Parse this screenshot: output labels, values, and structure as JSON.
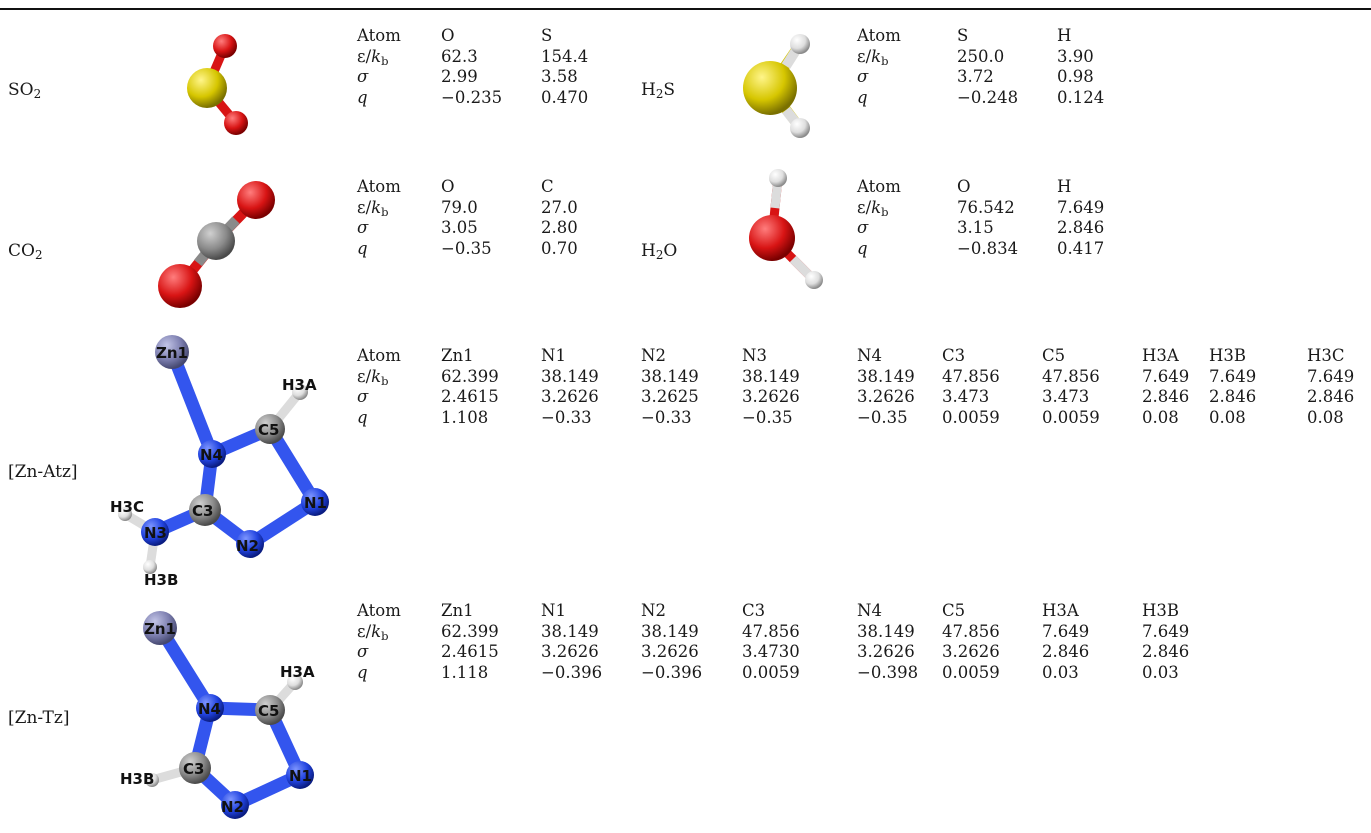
{
  "molecules": [
    {
      "id": "so2",
      "label_main": "SO",
      "label_sub": "2",
      "label_after": "",
      "header": [
        "Atom",
        "O",
        "S"
      ],
      "rows": [
        {
          "sym": "ε",
          "sub": "b",
          "values": [
            "62.3",
            "154.4"
          ]
        },
        {
          "sym": "σ",
          "values": [
            "2.99",
            "3.58"
          ]
        },
        {
          "sym": "q",
          "values": [
            "−0.235",
            "0.470"
          ]
        }
      ]
    },
    {
      "id": "h2s",
      "label_main": "H",
      "label_sub": "2",
      "label_after": "S",
      "header": [
        "Atom",
        "S",
        "H"
      ],
      "rows": [
        {
          "sym": "ε",
          "sub": "b",
          "values": [
            "250.0",
            "3.90"
          ]
        },
        {
          "sym": "σ",
          "values": [
            "3.72",
            "0.98"
          ]
        },
        {
          "sym": "q",
          "values": [
            "−0.248",
            "0.124"
          ]
        }
      ]
    },
    {
      "id": "co2",
      "label_main": "CO",
      "label_sub": "2",
      "label_after": "",
      "header": [
        "Atom",
        "O",
        "C"
      ],
      "rows": [
        {
          "sym": "ε",
          "sub": "b",
          "values": [
            "79.0",
            "27.0"
          ]
        },
        {
          "sym": "σ",
          "values": [
            "3.05",
            "2.80"
          ]
        },
        {
          "sym": "q",
          "values": [
            "−0.35",
            "0.70"
          ]
        }
      ]
    },
    {
      "id": "h2o",
      "label_main": "H",
      "label_sub": "2",
      "label_after": "O",
      "header": [
        "Atom",
        "O",
        "H"
      ],
      "rows": [
        {
          "sym": "ε",
          "sub": "b",
          "values": [
            "76.542",
            "7.649"
          ]
        },
        {
          "sym": "σ",
          "values": [
            "3.15",
            "2.846"
          ]
        },
        {
          "sym": "q",
          "values": [
            "−0.834",
            "0.417"
          ]
        }
      ]
    },
    {
      "id": "zn_atz",
      "label_main": "[Zn-Atz]",
      "label_sub": "",
      "label_after": "",
      "header": [
        "Atom",
        "Zn1",
        "N1",
        "N2",
        "N3",
        "N4",
        "C3",
        "C5",
        "H3A",
        "H3B",
        "H3C"
      ],
      "rows": [
        {
          "sym": "ε",
          "sub": "b",
          "values": [
            "62.399",
            "38.149",
            "38.149",
            "38.149",
            "38.149",
            "47.856",
            "47.856",
            "7.649",
            "7.649",
            "7.649"
          ]
        },
        {
          "sym": "σ",
          "values": [
            "2.4615",
            "3.2626",
            "3.2625",
            "3.2626",
            "3.2626",
            "3.473",
            "3.473",
            "2.846",
            "2.846",
            "2.846"
          ]
        },
        {
          "sym": "q",
          "values": [
            "1.108",
            "−0.33",
            "−0.33",
            "−0.35",
            "−0.35",
            "0.0059",
            "0.0059",
            "0.08",
            "0.08",
            "0.08"
          ]
        }
      ],
      "atom_labels": [
        "Zn1",
        "N4",
        "C5",
        "H3A",
        "N1",
        "N2",
        "C3",
        "N3",
        "H3C",
        "H3B"
      ]
    },
    {
      "id": "zn_tz",
      "label_main": "[Zn-Tz]",
      "label_sub": "",
      "label_after": "",
      "header": [
        "Atom",
        "Zn1",
        "N1",
        "N2",
        "C3",
        "N4",
        "C5",
        "H3A",
        "H3B"
      ],
      "rows": [
        {
          "sym": "ε",
          "sub": "b",
          "values": [
            "62.399",
            "38.149",
            "38.149",
            "47.856",
            "38.149",
            "47.856",
            "7.649",
            "7.649"
          ]
        },
        {
          "sym": "σ",
          "values": [
            "2.4615",
            "3.2626",
            "3.2626",
            "3.4730",
            "3.2626",
            "3.2626",
            "2.846",
            "2.846"
          ]
        },
        {
          "sym": "q",
          "values": [
            "1.118",
            "−0.396",
            "−0.396",
            "0.0059",
            "−0.398",
            "0.0059",
            "0.03",
            "0.03"
          ]
        }
      ],
      "atom_labels": [
        "Zn1",
        "N4",
        "C5",
        "H3A",
        "N1",
        "N2",
        "C3",
        "H3B"
      ]
    }
  ],
  "eps_den": "k",
  "atom_colors": {
    "O": "#d81414",
    "S": "#d6c600",
    "C": "#8a8a8a",
    "H": "#e6e6e6",
    "N": "#2244e0",
    "Zn": "#7d7fb0"
  }
}
